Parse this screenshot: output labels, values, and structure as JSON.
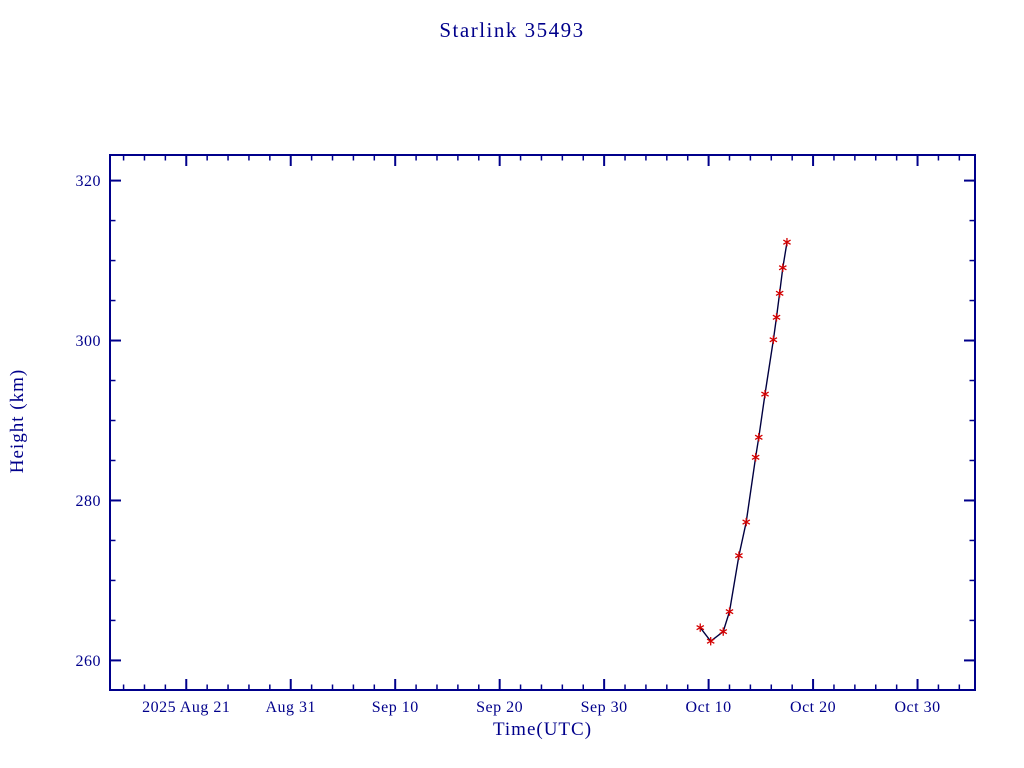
{
  "page": {
    "title": "Starlink 35493"
  },
  "chart_data": {
    "type": "line",
    "title": "Starlink 35493",
    "xlabel": "Time(UTC)",
    "ylabel": "Height (km)",
    "x_units": "days, 0 = 2025 Aug 21",
    "xlim": [
      -7.3,
      75.5
    ],
    "ylim": [
      256.3,
      323.2
    ],
    "grid": false,
    "legend": "none",
    "x_major_ticks": [
      {
        "value": 0,
        "label": "2025 Aug 21"
      },
      {
        "value": 10,
        "label": "Aug 31"
      },
      {
        "value": 20,
        "label": "Sep 10"
      },
      {
        "value": 30,
        "label": "Sep 20"
      },
      {
        "value": 40,
        "label": "Sep 30"
      },
      {
        "value": 50,
        "label": "Oct 10"
      },
      {
        "value": 60,
        "label": "Oct 20"
      },
      {
        "value": 70,
        "label": "Oct 30"
      }
    ],
    "x_minor_step": 2,
    "x_major_mod": 10,
    "y_major_ticks": [
      {
        "value": 260,
        "label": "260"
      },
      {
        "value": 280,
        "label": "280"
      },
      {
        "value": 300,
        "label": "300"
      },
      {
        "value": 320,
        "label": "320"
      }
    ],
    "y_minor_step": 5,
    "y_major_mod": 20,
    "colors": {
      "axis": "#00008B",
      "text": "#00008B",
      "line": "#000040",
      "marker": "#D40000"
    },
    "series": [
      {
        "name": "height_km",
        "marker": "asterisk",
        "points": [
          [
            49.2,
            264.1
          ],
          [
            50.2,
            262.4
          ],
          [
            51.4,
            263.6
          ],
          [
            52.0,
            266.1
          ],
          [
            52.9,
            273.1
          ],
          [
            53.6,
            277.3
          ],
          [
            54.5,
            285.4
          ],
          [
            54.8,
            287.9
          ],
          [
            55.4,
            293.3
          ],
          [
            56.2,
            300.1
          ],
          [
            56.5,
            302.9
          ],
          [
            56.8,
            305.9
          ],
          [
            57.1,
            309.1
          ],
          [
            57.5,
            312.3
          ]
        ]
      }
    ]
  }
}
